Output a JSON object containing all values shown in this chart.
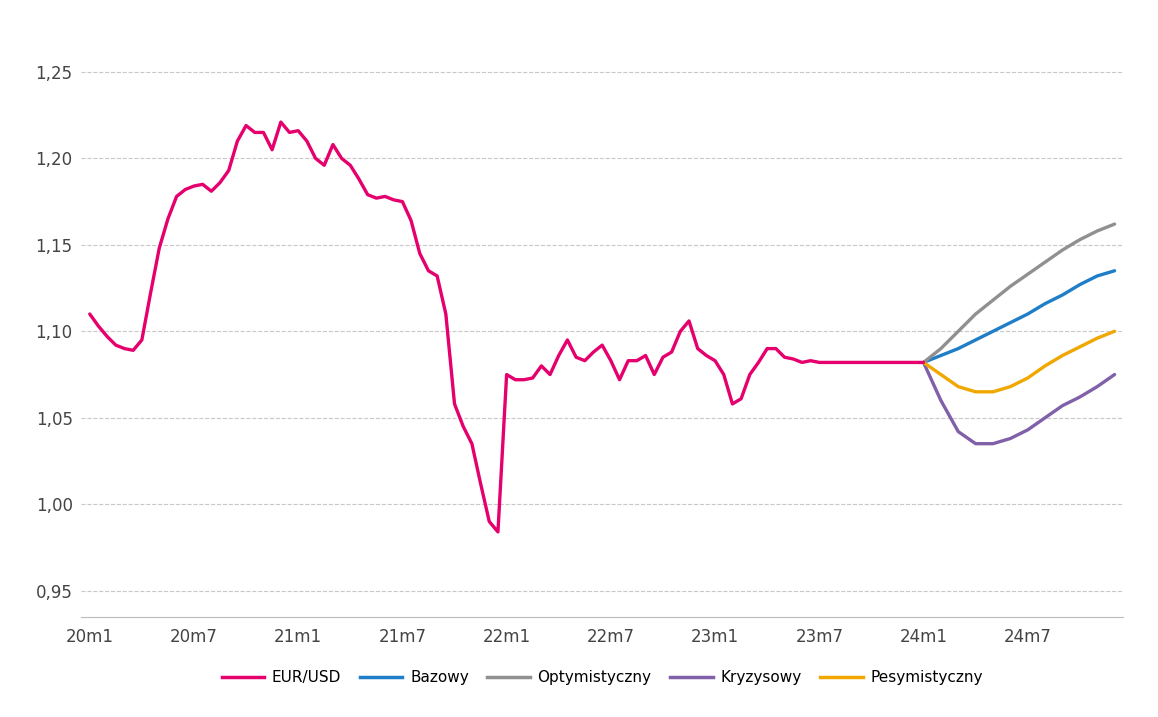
{
  "top_bar_color": "#cc0055",
  "background_color": "#ffffff",
  "grid_color": "#c8c8c8",
  "xtick_labels": [
    "20m1",
    "20m7",
    "21m1",
    "21m7",
    "22m1",
    "22m7",
    "23m1",
    "23m7",
    "24m1",
    "24m7"
  ],
  "ytick_labels": [
    "0,95",
    "1,00",
    "1,05",
    "1,10",
    "1,15",
    "1,20",
    "1,25"
  ],
  "ytick_values": [
    0.95,
    1.0,
    1.05,
    1.1,
    1.15,
    1.2,
    1.25
  ],
  "ylim": [
    0.935,
    1.275
  ],
  "xlim": [
    -0.5,
    59.5
  ],
  "xtick_positions": [
    0,
    6,
    12,
    18,
    24,
    30,
    36,
    42,
    48,
    54
  ],
  "eurusd": {
    "color": "#e5006d",
    "linewidth": 2.4,
    "x": [
      0,
      0.5,
      1,
      1.5,
      2,
      2.5,
      3,
      3.5,
      4,
      4.5,
      5,
      5.5,
      6,
      6.5,
      7,
      7.5,
      8,
      8.5,
      9,
      9.5,
      10,
      10.5,
      11,
      11.5,
      12,
      12.5,
      13,
      13.5,
      14,
      14.5,
      15,
      15.5,
      16,
      16.5,
      17,
      17.5,
      18,
      18.5,
      19,
      19.5,
      20,
      20.5,
      21,
      21.5,
      22,
      22.5,
      23,
      23.5,
      24,
      24.5,
      25,
      25.5,
      26,
      26.5,
      27,
      27.5,
      28,
      28.5,
      29,
      29.5,
      30,
      30.5,
      31,
      31.5,
      32,
      32.5,
      33,
      33.5,
      34,
      34.5,
      35,
      35.5,
      36,
      36.5,
      37,
      37.5,
      38,
      38.5,
      39,
      39.5,
      40,
      40.5,
      41,
      41.5,
      42,
      42.5,
      43,
      43.5,
      44,
      44.5,
      45,
      45.5,
      46,
      46.5,
      47,
      47.5,
      48
    ],
    "y": [
      1.11,
      1.103,
      1.097,
      1.092,
      1.09,
      1.089,
      1.095,
      1.122,
      1.148,
      1.165,
      1.178,
      1.182,
      1.184,
      1.185,
      1.181,
      1.186,
      1.193,
      1.21,
      1.219,
      1.215,
      1.215,
      1.205,
      1.221,
      1.215,
      1.216,
      1.21,
      1.2,
      1.196,
      1.208,
      1.2,
      1.196,
      1.188,
      1.179,
      1.177,
      1.178,
      1.176,
      1.175,
      1.164,
      1.145,
      1.135,
      1.132,
      1.11,
      1.058,
      1.045,
      1.035,
      1.012,
      0.99,
      0.984,
      1.075,
      1.072,
      1.072,
      1.073,
      1.08,
      1.075,
      1.086,
      1.095,
      1.085,
      1.083,
      1.088,
      1.092,
      1.083,
      1.072,
      1.083,
      1.083,
      1.086,
      1.075,
      1.085,
      1.088,
      1.1,
      1.106,
      1.09,
      1.086,
      1.083,
      1.075,
      1.058,
      1.061,
      1.075,
      1.082,
      1.09,
      1.09,
      1.085,
      1.084,
      1.082,
      1.083,
      1.082,
      1.082,
      1.082,
      1.082,
      1.082,
      1.082,
      1.082,
      1.082,
      1.082,
      1.082,
      1.082,
      1.082,
      1.082
    ]
  },
  "forecasts": {
    "Bazowy": {
      "color": "#1e7ec8",
      "linewidth": 2.4,
      "x": [
        48,
        49,
        50,
        51,
        52,
        53,
        54,
        55,
        56,
        57,
        58,
        59
      ],
      "y": [
        1.082,
        1.086,
        1.09,
        1.095,
        1.1,
        1.105,
        1.11,
        1.116,
        1.121,
        1.127,
        1.132,
        1.135
      ]
    },
    "Optymistyczny": {
      "color": "#909090",
      "linewidth": 2.4,
      "x": [
        48,
        49,
        50,
        51,
        52,
        53,
        54,
        55,
        56,
        57,
        58,
        59
      ],
      "y": [
        1.082,
        1.09,
        1.1,
        1.11,
        1.118,
        1.126,
        1.133,
        1.14,
        1.147,
        1.153,
        1.158,
        1.162
      ]
    },
    "Kryzysowy": {
      "color": "#8060a8",
      "linewidth": 2.4,
      "x": [
        48,
        49,
        50,
        51,
        52,
        53,
        54,
        55,
        56,
        57,
        58,
        59
      ],
      "y": [
        1.082,
        1.06,
        1.042,
        1.035,
        1.035,
        1.038,
        1.043,
        1.05,
        1.057,
        1.062,
        1.068,
        1.075
      ]
    },
    "Pesymistyczny": {
      "color": "#f0a800",
      "linewidth": 2.4,
      "x": [
        48,
        49,
        50,
        51,
        52,
        53,
        54,
        55,
        56,
        57,
        58,
        59
      ],
      "y": [
        1.082,
        1.075,
        1.068,
        1.065,
        1.065,
        1.068,
        1.073,
        1.08,
        1.086,
        1.091,
        1.096,
        1.1
      ]
    }
  },
  "legend": [
    {
      "label": "EUR/USD",
      "color": "#e5006d"
    },
    {
      "label": "Bazowy",
      "color": "#1e7ec8"
    },
    {
      "label": "Optymistyczny",
      "color": "#909090"
    },
    {
      "label": "Kryzysowy",
      "color": "#8060a8"
    },
    {
      "label": "Pesymistyczny",
      "color": "#f0a800"
    }
  ]
}
